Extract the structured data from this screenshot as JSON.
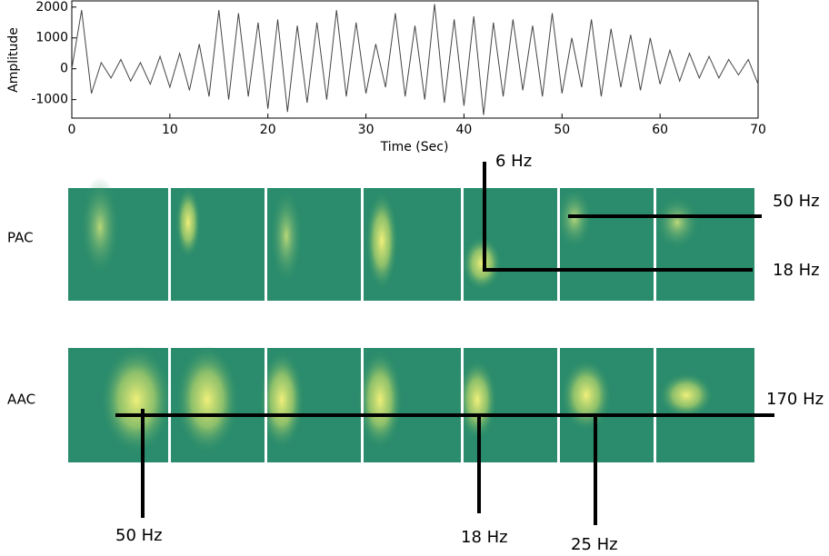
{
  "chart_data": {
    "type": "line",
    "x_label": "Time (Sec)",
    "y_label": "Amplitude",
    "x": [
      0,
      1,
      2,
      3,
      4,
      5,
      6,
      7,
      8,
      9,
      10,
      11,
      12,
      13,
      14,
      15,
      16,
      17,
      18,
      19,
      20,
      21,
      22,
      23,
      24,
      25,
      26,
      27,
      28,
      29,
      30,
      31,
      32,
      33,
      34,
      35,
      36,
      37,
      38,
      39,
      40,
      41,
      42,
      43,
      44,
      45,
      46,
      47,
      48,
      49,
      50,
      51,
      52,
      53,
      54,
      55,
      56,
      57,
      58,
      59,
      60,
      61,
      62,
      63,
      64,
      65,
      66,
      67,
      68,
      69,
      70
    ],
    "series": [
      {
        "color": "#444444",
        "values": [
          0,
          1900,
          -800,
          200,
          -300,
          300,
          -400,
          200,
          -500,
          400,
          -600,
          500,
          -700,
          800,
          -900,
          1900,
          -1000,
          1800,
          -900,
          1500,
          -1300,
          1600,
          -1400,
          1400,
          -1100,
          1500,
          -1000,
          1900,
          -900,
          1500,
          -800,
          800,
          -600,
          1800,
          -900,
          1400,
          -1000,
          2100,
          -1100,
          1600,
          -1200,
          1700,
          -1500,
          1500,
          -900,
          1600,
          -700,
          1400,
          -900,
          1800,
          -800,
          1000,
          -600,
          1600,
          -900,
          1300,
          -600,
          1100,
          -700,
          1000,
          -500,
          600,
          -400,
          500,
          -300,
          400,
          -300,
          300,
          -200,
          300,
          -500
        ]
      }
    ],
    "xlim": [
      0,
      70
    ],
    "xticks": [
      0,
      10,
      20,
      30,
      40,
      50,
      60,
      70
    ],
    "ylim": [
      -1600,
      2200
    ],
    "yticks": [
      -1000,
      0,
      1000,
      2000
    ]
  },
  "panels": {
    "pac_label": "PAC",
    "aac_label": "AAC",
    "annotations": [
      "6 Hz",
      "50 Hz",
      "18 Hz",
      "170 Hz",
      "50 Hz",
      "18 Hz",
      "25 Hz"
    ]
  }
}
